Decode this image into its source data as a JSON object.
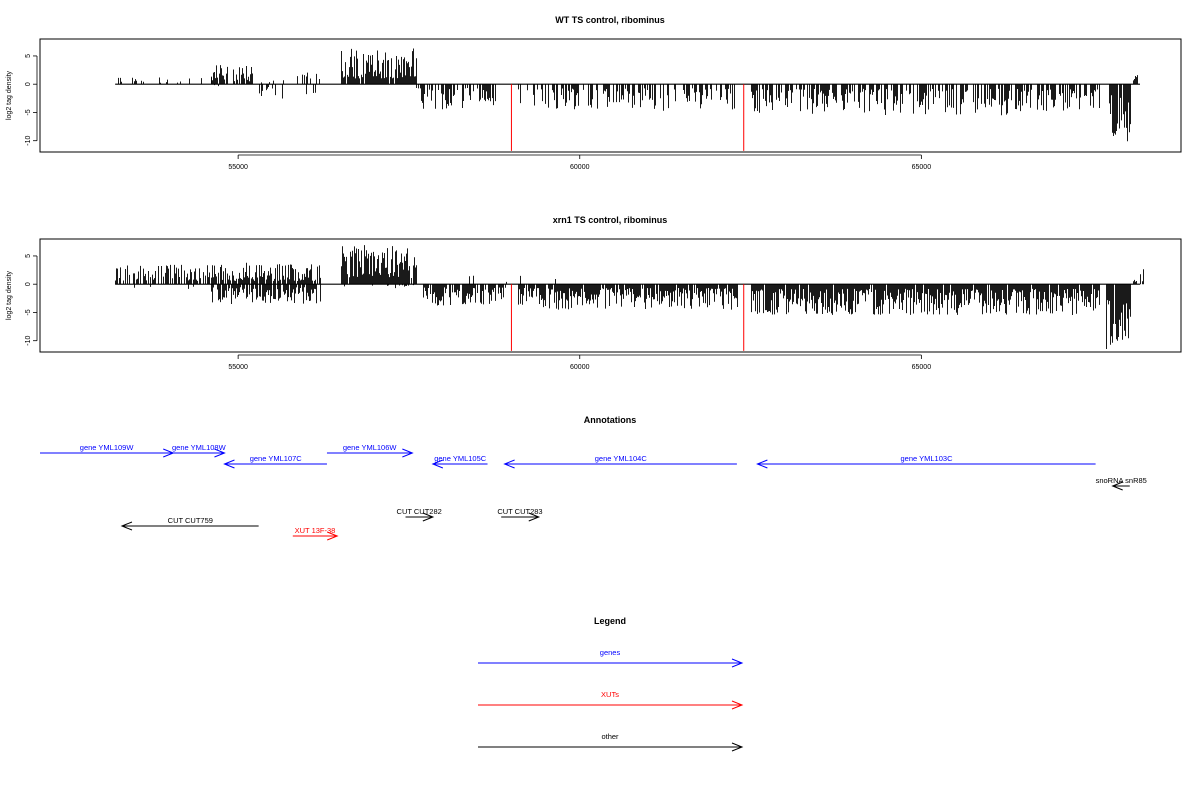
{
  "colors": {
    "genes": "#0000ff",
    "xuts": "#ff0000",
    "other": "#000000",
    "marker": "#ff0000",
    "bars": "#000000"
  },
  "chart_data": [
    {
      "type": "bar",
      "title": "WT TS control, ribominus",
      "xlabel": "",
      "ylabel": "log2 tag density",
      "xlim": [
        52100,
        68800
      ],
      "ylim": [
        -12,
        8
      ],
      "xticks": [
        55000,
        60000,
        65000
      ],
      "yticks": [
        -10,
        -5,
        0,
        5
      ],
      "baseline": [
        53200,
        68200
      ],
      "markers": [
        59000,
        62400
      ],
      "segments": [
        {
          "from": 53200,
          "to": 54600,
          "side": "plus",
          "amp": 1.6,
          "density": 0.15,
          "seed": 11
        },
        {
          "from": 54600,
          "to": 55200,
          "side": "plus",
          "amp": 3.5,
          "density": 0.65,
          "seed": 12
        },
        {
          "from": 54600,
          "to": 54700,
          "side": "minus",
          "amp": 1.0,
          "density": 0.2,
          "seed": 13
        },
        {
          "from": 55300,
          "to": 55700,
          "side": "minus",
          "amp": 3.0,
          "density": 0.3,
          "seed": 14
        },
        {
          "from": 55300,
          "to": 55700,
          "side": "plus",
          "amp": 1.2,
          "density": 0.12,
          "seed": 15
        },
        {
          "from": 55800,
          "to": 56300,
          "side": "plus",
          "amp": 2.5,
          "density": 0.2,
          "seed": 16
        },
        {
          "from": 55800,
          "to": 56300,
          "side": "minus",
          "amp": 2.0,
          "density": 0.12,
          "seed": 17
        },
        {
          "from": 56500,
          "to": 57600,
          "side": "plus",
          "amp": 6.5,
          "density": 0.95,
          "seed": 18
        },
        {
          "from": 57600,
          "to": 58800,
          "side": "minus",
          "amp": 4.5,
          "density": 0.55,
          "seed": 19
        },
        {
          "from": 59100,
          "to": 62300,
          "side": "minus",
          "amp": 4.8,
          "density": 0.5,
          "seed": 20
        },
        {
          "from": 62500,
          "to": 67600,
          "side": "minus",
          "amp": 5.5,
          "density": 0.6,
          "seed": 21
        },
        {
          "from": 67750,
          "to": 68050,
          "side": "minus",
          "amp": 11.0,
          "density": 0.95,
          "seed": 22
        },
        {
          "from": 68100,
          "to": 68150,
          "side": "plus",
          "amp": 1.8,
          "density": 1.0,
          "seed": 23
        }
      ]
    },
    {
      "type": "bar",
      "title": "xrn1 TS control, ribominus",
      "xlabel": "",
      "ylabel": "log2 tag density",
      "xlim": [
        52100,
        68800
      ],
      "ylim": [
        -12,
        8
      ],
      "xticks": [
        55000,
        60000,
        65000
      ],
      "yticks": [
        -10,
        -5,
        0,
        5
      ],
      "baseline": [
        53200,
        68200
      ],
      "markers": [
        59000,
        62400
      ],
      "segments": [
        {
          "from": 53200,
          "to": 54600,
          "side": "plus",
          "amp": 3.5,
          "density": 0.55,
          "seed": 31
        },
        {
          "from": 53200,
          "to": 54600,
          "side": "minus",
          "amp": 1.0,
          "density": 0.08,
          "seed": 32
        },
        {
          "from": 54600,
          "to": 56200,
          "side": "plus",
          "amp": 3.8,
          "density": 0.85,
          "seed": 33
        },
        {
          "from": 54600,
          "to": 56200,
          "side": "minus",
          "amp": 3.5,
          "density": 0.75,
          "seed": 34
        },
        {
          "from": 56500,
          "to": 57600,
          "side": "plus",
          "amp": 7.0,
          "density": 0.95,
          "seed": 35
        },
        {
          "from": 56500,
          "to": 57600,
          "side": "minus",
          "amp": 1.0,
          "density": 0.1,
          "seed": 36
        },
        {
          "from": 57700,
          "to": 58900,
          "side": "minus",
          "amp": 3.8,
          "density": 0.75,
          "seed": 37
        },
        {
          "from": 58300,
          "to": 59800,
          "side": "plus",
          "amp": 2.0,
          "density": 0.05,
          "seed": 38
        },
        {
          "from": 59100,
          "to": 62300,
          "side": "minus",
          "amp": 4.5,
          "density": 0.9,
          "seed": 39
        },
        {
          "from": 62500,
          "to": 67600,
          "side": "minus",
          "amp": 5.5,
          "density": 0.95,
          "seed": 40
        },
        {
          "from": 67700,
          "to": 68050,
          "side": "minus",
          "amp": 11.5,
          "density": 0.95,
          "seed": 41
        },
        {
          "from": 68100,
          "to": 68250,
          "side": "plus",
          "amp": 2.8,
          "density": 0.8,
          "seed": 42
        }
      ]
    }
  ],
  "annotations": {
    "title": "Annotations",
    "items": [
      {
        "label": "gene YML109W",
        "kind": "genes",
        "start": 52100,
        "end": 54050,
        "strand": "+",
        "row": 0
      },
      {
        "label": "gene YML108W",
        "kind": "genes",
        "start": 54050,
        "end": 54800,
        "strand": "+",
        "row": 0
      },
      {
        "label": "gene YML107C",
        "kind": "genes",
        "start": 56300,
        "end": 54800,
        "strand": "-",
        "row": 1
      },
      {
        "label": "gene YML106W",
        "kind": "genes",
        "start": 56300,
        "end": 57550,
        "strand": "+",
        "row": 0
      },
      {
        "label": "gene YML105C",
        "kind": "genes",
        "start": 58650,
        "end": 57850,
        "strand": "-",
        "row": 1
      },
      {
        "label": "gene YML104C",
        "kind": "genes",
        "start": 62300,
        "end": 58900,
        "strand": "-",
        "row": 1
      },
      {
        "label": "gene YML103C",
        "kind": "genes",
        "start": 67550,
        "end": 62600,
        "strand": "-",
        "row": 1
      },
      {
        "label": "snoRNA snR85",
        "kind": "other",
        "start": 68050,
        "end": 67800,
        "strand": "-",
        "row": 2
      },
      {
        "label": "CUT CUT759",
        "kind": "other",
        "start": 55300,
        "end": 53300,
        "strand": "-",
        "row": 4
      },
      {
        "label": "XUT 13F-38",
        "kind": "xuts",
        "start": 55800,
        "end": 56450,
        "strand": "+",
        "row": 5
      },
      {
        "label": "CUT CUT282",
        "kind": "other",
        "start": 57450,
        "end": 57850,
        "strand": "+",
        "row": 3
      },
      {
        "label": "CUT CUT283",
        "kind": "other",
        "start": 58850,
        "end": 59400,
        "strand": "+",
        "row": 3
      }
    ]
  },
  "legend": {
    "title": "Legend",
    "items": [
      {
        "label": "genes",
        "kind": "genes"
      },
      {
        "label": "XUTs",
        "kind": "xuts"
      },
      {
        "label": "other",
        "kind": "other"
      }
    ]
  }
}
